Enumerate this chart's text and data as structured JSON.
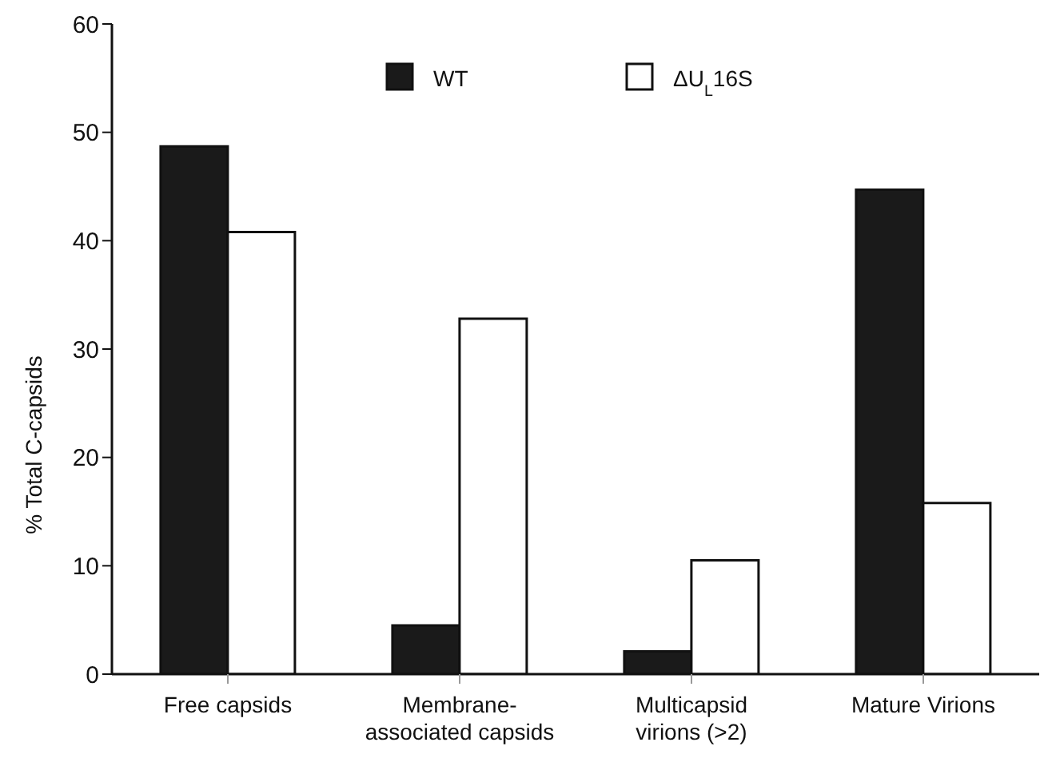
{
  "chart_data": {
    "type": "bar",
    "ylabel": "% Total C-capsids",
    "categories": [
      "Free capsids",
      "Membrane-associated capsids",
      "Multicapsid virions (>2)",
      "Mature Virions"
    ],
    "series": [
      {
        "name": "WT",
        "color": "#1a1a1a",
        "values": [
          48.7,
          4.5,
          2.1,
          44.7
        ]
      },
      {
        "name": "ΔU$_{L}$16S",
        "color": "#ffffff",
        "values": [
          40.8,
          32.8,
          10.5,
          15.8
        ]
      }
    ],
    "ylim": [
      0,
      60
    ],
    "yticks": [
      0,
      10,
      20,
      30,
      40,
      50,
      60
    ],
    "legend": "top"
  }
}
